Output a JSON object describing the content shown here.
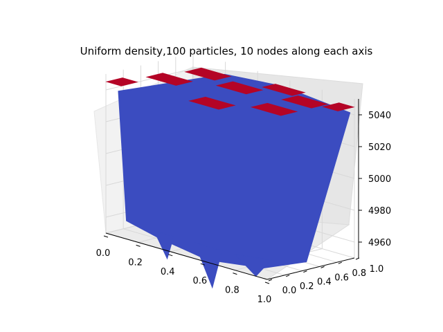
{
  "chart_data": {
    "type": "surface",
    "title": "Uniform density,100 particles, 10 nodes along each axis",
    "xlabel": "",
    "ylabel": "",
    "zlabel": "",
    "x_ticks": [
      "0.0",
      "0.2",
      "0.4",
      "0.6",
      "0.8",
      "1.0"
    ],
    "y_ticks": [
      "0.0",
      "0.2",
      "0.4",
      "0.6",
      "0.8",
      "1.0"
    ],
    "z_ticks": [
      "4960",
      "4980",
      "5000",
      "5020",
      "5040"
    ],
    "xlim": [
      0,
      1
    ],
    "ylim": [
      0,
      1
    ],
    "zlim": [
      4950,
      5050
    ],
    "grid": true,
    "colormap": "coolwarm",
    "colors": {
      "low": "#3b4cc0",
      "high": "#b40426"
    },
    "peaks": [
      {
        "x": 0.0,
        "y": 0.1,
        "z": 5045
      },
      {
        "x": 0.2,
        "y": 0.8,
        "z": 5045
      },
      {
        "x": 0.15,
        "y": 0.45,
        "z": 5045
      },
      {
        "x": 0.45,
        "y": 0.7,
        "z": 5045
      },
      {
        "x": 0.55,
        "y": 0.2,
        "z": 5045
      },
      {
        "x": 0.6,
        "y": 0.95,
        "z": 5045
      },
      {
        "x": 0.8,
        "y": 0.8,
        "z": 5045
      },
      {
        "x": 0.8,
        "y": 0.45,
        "z": 5045
      },
      {
        "x": 1.0,
        "y": 0.9,
        "z": 5045
      }
    ],
    "base_level": 4950
  }
}
